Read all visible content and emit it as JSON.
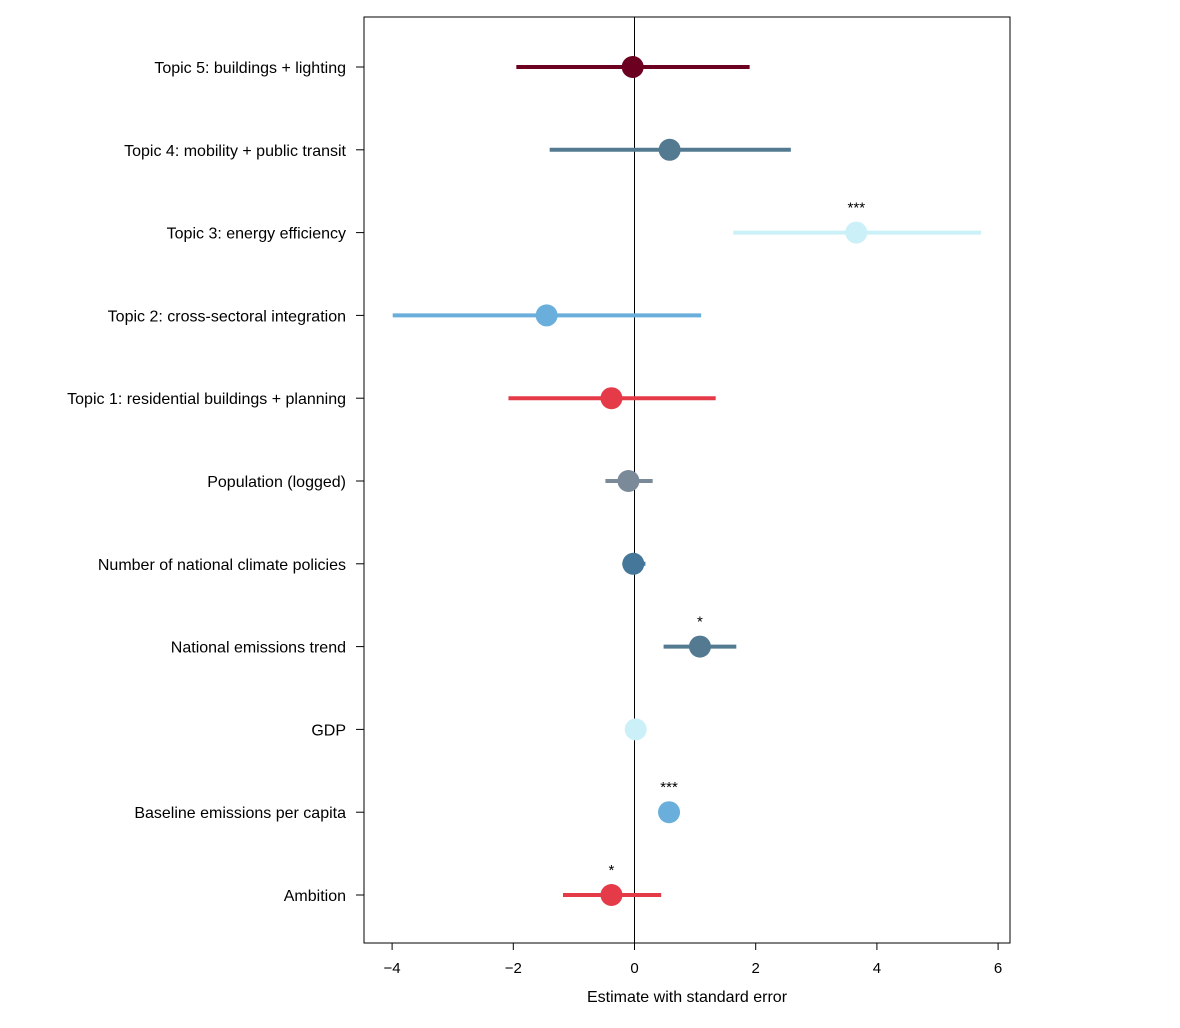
{
  "chart_data": {
    "type": "scatter",
    "subtype": "coefficient-plot-with-error-bars",
    "title": "",
    "xlabel": "Estimate with standard error",
    "ylabel": "",
    "xlim": [
      -4.5,
      6.2
    ],
    "x_ticks": [
      {
        "value": -4,
        "label": "−4"
      },
      {
        "value": -2,
        "label": "−2"
      },
      {
        "value": 0,
        "label": "0"
      },
      {
        "value": 2,
        "label": "2"
      },
      {
        "value": 4,
        "label": "4"
      },
      {
        "value": 6,
        "label": "6"
      }
    ],
    "reference_line": 0,
    "grid": false,
    "legend": "none",
    "rows": [
      {
        "label": "Topic 5: buildings + lighting",
        "estimate": -0.03,
        "lower": -1.95,
        "upper": 1.9,
        "significance": "",
        "color": "#6b0020"
      },
      {
        "label": "Topic 4: mobility + public transit",
        "estimate": 0.58,
        "lower": -1.4,
        "upper": 2.58,
        "significance": "",
        "color": "#537a91"
      },
      {
        "label": "Topic 3: energy efficiency",
        "estimate": 3.66,
        "lower": 1.63,
        "upper": 5.72,
        "significance": "***",
        "color": "#ccf0f8"
      },
      {
        "label": "Topic 2: cross-sectoral integration",
        "estimate": -1.45,
        "lower": -3.99,
        "upper": 1.1,
        "significance": "",
        "color": "#6aafdc"
      },
      {
        "label": "Topic 1: residential buildings + planning",
        "estimate": -0.38,
        "lower": -2.08,
        "upper": 1.34,
        "significance": "",
        "color": "#e53a48"
      },
      {
        "label": "Population (logged)",
        "estimate": -0.1,
        "lower": -0.48,
        "upper": 0.3,
        "significance": "",
        "color": "#7b8a98"
      },
      {
        "label": "Number of national climate policies",
        "estimate": -0.02,
        "lower": -0.2,
        "upper": 0.18,
        "significance": "",
        "color": "#44779a"
      },
      {
        "label": "National emissions trend",
        "estimate": 1.08,
        "lower": 0.48,
        "upper": 1.68,
        "significance": "*",
        "color": "#537a91"
      },
      {
        "label": "GDP",
        "estimate": 0.02,
        "lower": -0.04,
        "upper": 0.08,
        "significance": "",
        "color": "#ccf0f8"
      },
      {
        "label": "Baseline emissions per capita",
        "estimate": 0.57,
        "lower": 0.52,
        "upper": 0.62,
        "significance": "***",
        "color": "#6aafdc"
      },
      {
        "label": "Ambition",
        "estimate": -0.38,
        "lower": -1.18,
        "upper": 0.44,
        "significance": "*",
        "color": "#e53a48"
      }
    ]
  }
}
